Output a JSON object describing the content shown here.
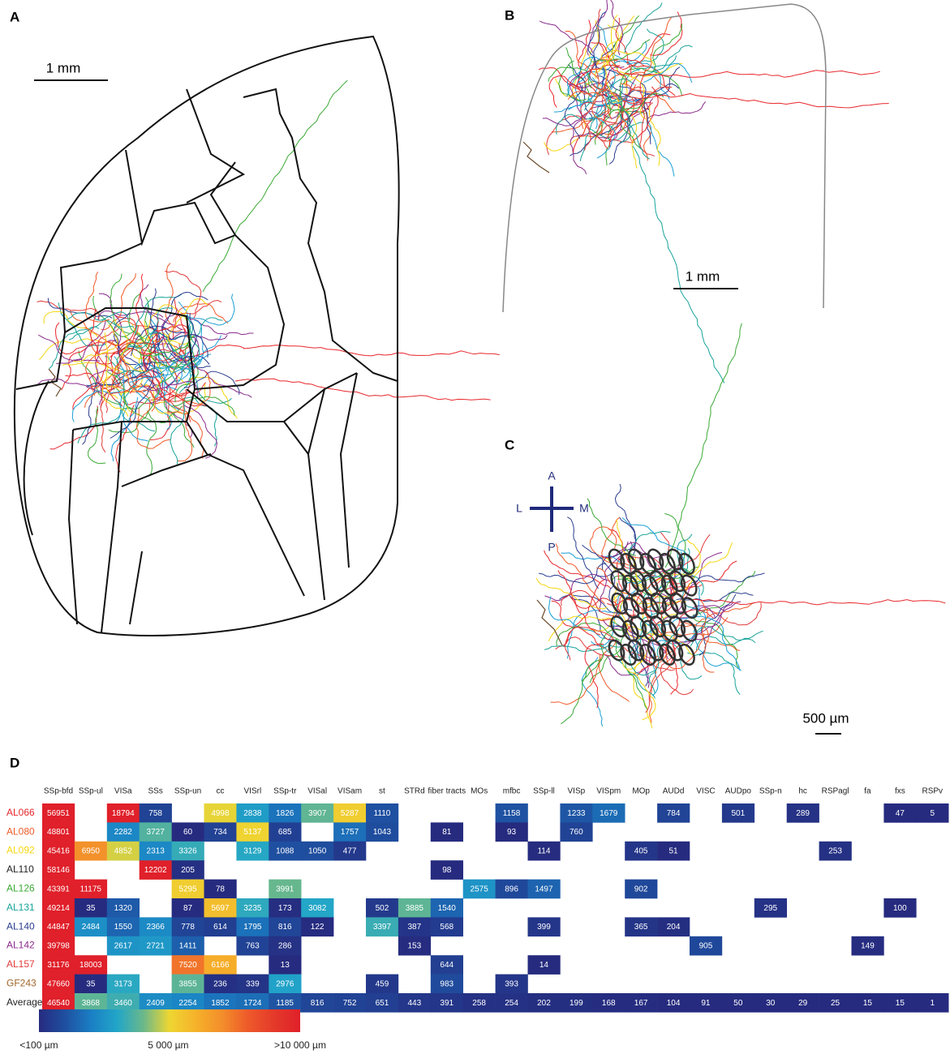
{
  "panels": {
    "a": {
      "label": "A",
      "scale": "1 mm"
    },
    "b": {
      "label": "B",
      "scale": "1 mm"
    },
    "c": {
      "label": "C",
      "scale": "500 µm",
      "compass": {
        "anterior": "A",
        "lateral": "L",
        "medial": "M",
        "posterior": "P"
      }
    },
    "d": {
      "label": "D"
    }
  },
  "table": {
    "columns": [
      "SSp-bfd",
      "SSp-ul",
      "VISa",
      "SSs",
      "SSp-un",
      "cc",
      "VISrl",
      "SSp-tr",
      "VISal",
      "VISam",
      "st",
      "STRd",
      "fiber tracts",
      "MOs",
      "mfbc",
      "SSp-ll",
      "VISp",
      "VISpm",
      "MOp",
      "AUDd",
      "VISC",
      "AUDpo",
      "SSp-n",
      "hc",
      "RSPagl",
      "fa",
      "fxs",
      "RSPv"
    ],
    "rows": [
      {
        "name": "AL066",
        "color": "#e8262b",
        "values": [
          56951,
          null,
          18794,
          758,
          null,
          4998,
          2838,
          1826,
          3907,
          5287,
          1110,
          null,
          null,
          null,
          1158,
          null,
          1233,
          1679,
          null,
          784,
          null,
          501,
          null,
          289,
          null,
          null,
          47,
          5
        ]
      },
      {
        "name": "AL080",
        "color": "#f05a28",
        "values": [
          48801,
          null,
          2282,
          3727,
          60,
          734,
          5137,
          685,
          null,
          1757,
          1043,
          null,
          81,
          null,
          93,
          null,
          760,
          null,
          null,
          null,
          null,
          null,
          null,
          null,
          null,
          null,
          null,
          null
        ]
      },
      {
        "name": "AL092",
        "color": "#f5d60f",
        "values": [
          45416,
          6950,
          4852,
          2313,
          3326,
          null,
          3129,
          1088,
          1050,
          477,
          null,
          null,
          null,
          null,
          null,
          114,
          null,
          null,
          405,
          51,
          null,
          null,
          null,
          null,
          253,
          null,
          null,
          null
        ]
      },
      {
        "name": "AL110",
        "color": "#222222",
        "values": [
          58146,
          null,
          null,
          12202,
          205,
          null,
          null,
          null,
          null,
          null,
          null,
          null,
          98,
          null,
          null,
          null,
          null,
          null,
          null,
          null,
          null,
          null,
          null,
          null,
          null,
          null,
          null,
          null
        ]
      },
      {
        "name": "AL126",
        "color": "#3aa935",
        "values": [
          43391,
          11175,
          null,
          null,
          5295,
          78,
          null,
          3991,
          null,
          null,
          null,
          null,
          null,
          2575,
          896,
          1497,
          null,
          null,
          902,
          null,
          null,
          null,
          null,
          null,
          null,
          null,
          null,
          null
        ]
      },
      {
        "name": "AL131",
        "color": "#17a39a",
        "values": [
          49214,
          35,
          1320,
          null,
          87,
          5697,
          3235,
          173,
          3082,
          null,
          502,
          3885,
          1540,
          null,
          null,
          null,
          null,
          null,
          null,
          null,
          null,
          null,
          295,
          null,
          null,
          null,
          100,
          null
        ]
      },
      {
        "name": "AL140",
        "color": "#2a3d8f",
        "values": [
          44847,
          2484,
          1550,
          2366,
          778,
          614,
          1795,
          816,
          122,
          null,
          3397,
          387,
          568,
          null,
          null,
          399,
          null,
          null,
          365,
          204,
          null,
          null,
          null,
          null,
          null,
          null,
          null,
          null
        ]
      },
      {
        "name": "AL142",
        "color": "#8a2a8c",
        "values": [
          39798,
          null,
          2617,
          2721,
          1411,
          null,
          763,
          286,
          null,
          null,
          null,
          153,
          null,
          null,
          null,
          null,
          null,
          null,
          null,
          null,
          905,
          null,
          null,
          null,
          null,
          149,
          null,
          null
        ]
      },
      {
        "name": "AL157",
        "color": "#e23a3a",
        "values": [
          31176,
          18003,
          null,
          null,
          7520,
          6166,
          null,
          13,
          null,
          null,
          null,
          null,
          644,
          null,
          null,
          14,
          null,
          null,
          null,
          null,
          null,
          null,
          null,
          null,
          null,
          null,
          null,
          null
        ]
      },
      {
        "name": "GF243",
        "color": "#a0662a",
        "values": [
          47660,
          35,
          3173,
          null,
          3855,
          236,
          339,
          2976,
          null,
          null,
          459,
          null,
          983,
          null,
          393,
          null,
          null,
          null,
          null,
          null,
          null,
          null,
          null,
          null,
          null,
          null,
          null,
          null
        ]
      }
    ],
    "average": {
      "name": "Average",
      "values": [
        46540,
        3868,
        3460,
        2409,
        2254,
        1852,
        1724,
        1185,
        816,
        752,
        651,
        443,
        391,
        258,
        254,
        202,
        199,
        168,
        167,
        104,
        91,
        50,
        30,
        29,
        25,
        15,
        15,
        1
      ]
    }
  },
  "colorbar": {
    "colors": [
      "#262b7f",
      "#1f4fa0",
      "#1a7fc4",
      "#22a6c8",
      "#6bb88a",
      "#eed632",
      "#f6b22a",
      "#f38e2b",
      "#ee5a2a",
      "#e43a2a",
      "#e0202a"
    ],
    "ticks": [
      {
        "value": 100,
        "label": "<100 µm"
      },
      {
        "value": 5000,
        "label": "5 000 µm"
      },
      {
        "value": 10000,
        "label": ">10 000 µm"
      }
    ]
  }
}
